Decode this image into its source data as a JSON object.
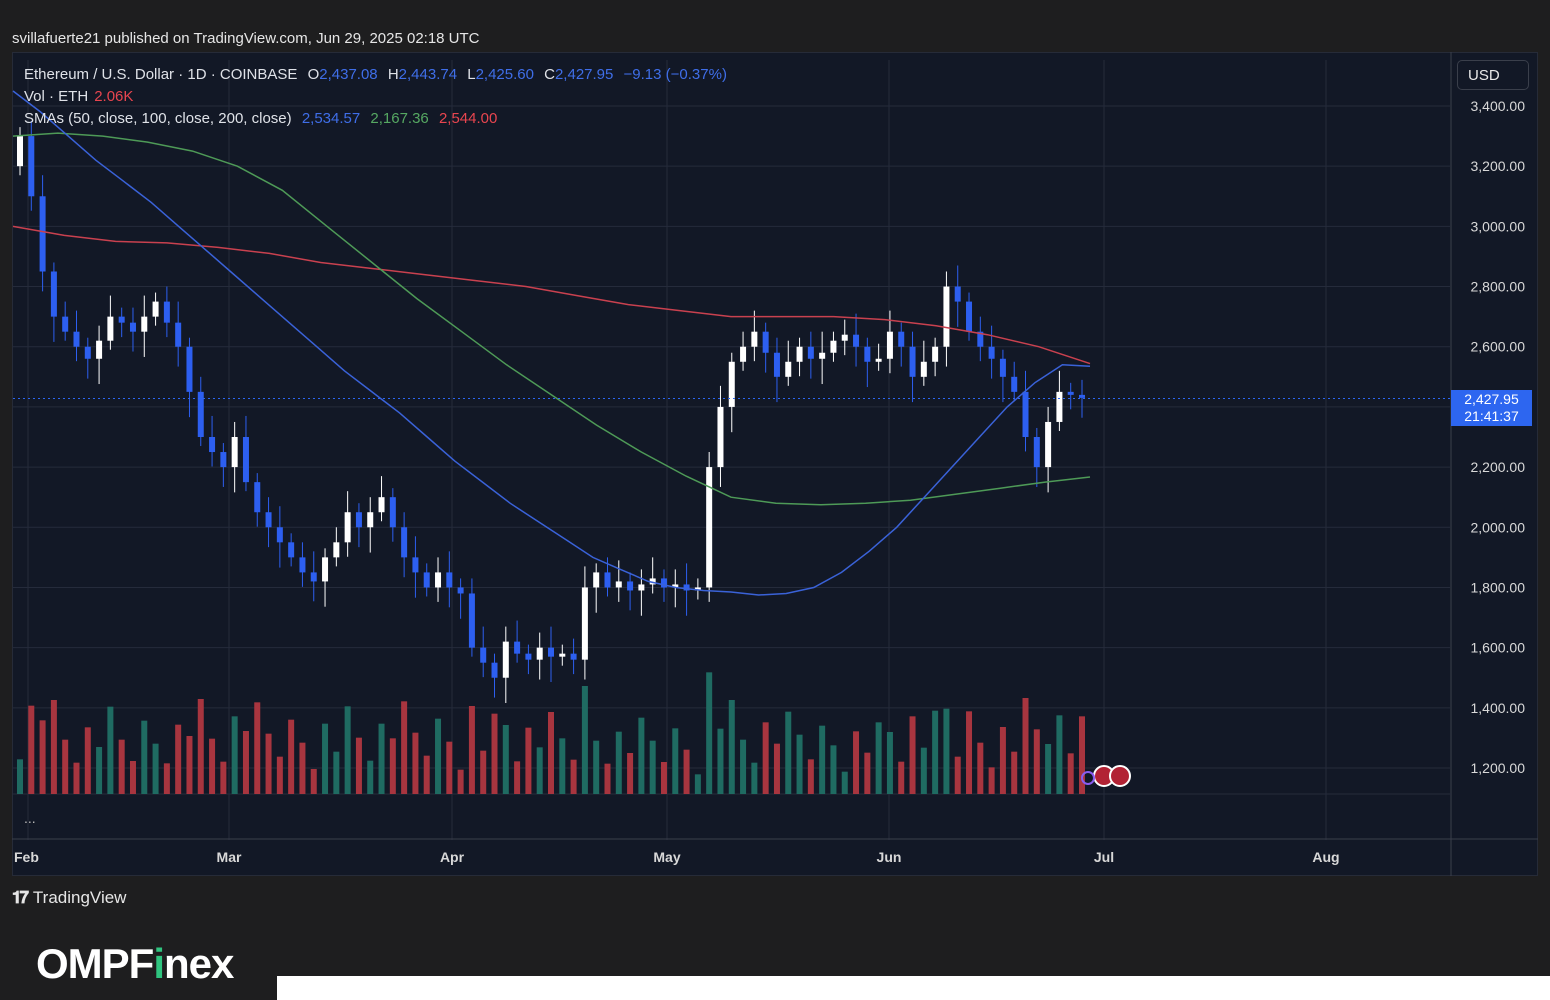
{
  "header": {
    "published": "svillafuerte21 published on TradingView.com, Jun 29, 2025 02:18 UTC"
  },
  "legend": {
    "symbol": "Ethereum / U.S. Dollar · 1D · COINBASE",
    "o_label": "O",
    "o_value": "2,437.08",
    "h_label": "H",
    "h_value": "2,443.74",
    "l_label": "L",
    "l_value": "2,425.60",
    "c_label": "C",
    "c_value": "2,427.95",
    "change": "−9.13 (−0.37%)",
    "vol_label": "Vol · ETH",
    "vol_value": "2.06K",
    "sma_label": "SMAs (50, close, 100, close, 200, close)",
    "sma50": "2,534.57",
    "sma100": "2,167.36",
    "sma200": "2,544.00"
  },
  "currency_button": "USD",
  "price_tag": {
    "price": "2,427.95",
    "countdown": "21:41:37"
  },
  "more_dots": "...",
  "footer": {
    "tradingview": "TradingView",
    "brand_main": "OMPF",
    "brand_accent": "i",
    "brand_tail": "nex"
  },
  "colors": {
    "up": "#ffffff",
    "down": "#2d5ff0",
    "vol_up": "#1f6b62",
    "vol_down": "#a8353f",
    "sma50": "#3a62d8",
    "sma100": "#4e9a57",
    "sma200": "#c9414f",
    "background": "#121826"
  },
  "chart_data": {
    "type": "candlestick",
    "y_axis": {
      "min": 1200,
      "max": 3400,
      "ticks": [
        "3,400.00",
        "3,200.00",
        "3,000.00",
        "2,800.00",
        "2,600.00",
        "2,400.00",
        "2,200.00",
        "2,000.00",
        "1,800.00",
        "1,600.00",
        "1,400.00",
        "1,200.00"
      ]
    },
    "x_axis": {
      "labels": [
        "Feb",
        "Mar",
        "Apr",
        "May",
        "Jun",
        "Jul",
        "Aug"
      ]
    },
    "current_price": 2427.95,
    "close_series_approx": [
      3300,
      3100,
      2850,
      2700,
      2650,
      2600,
      2560,
      2620,
      2700,
      2680,
      2650,
      2700,
      2750,
      2680,
      2600,
      2450,
      2300,
      2250,
      2200,
      2300,
      2150,
      2050,
      2000,
      1950,
      1900,
      1850,
      1820,
      1900,
      1950,
      2050,
      2000,
      2050,
      2100,
      2000,
      1900,
      1850,
      1800,
      1850,
      1800,
      1780,
      1600,
      1550,
      1500,
      1620,
      1580,
      1560,
      1600,
      1570,
      1580,
      1560,
      1800,
      1850,
      1800,
      1820,
      1790,
      1810,
      1830,
      1800,
      1810,
      1790,
      1800,
      2200,
      2400,
      2550,
      2600,
      2650,
      2580,
      2500,
      2550,
      2600,
      2560,
      2580,
      2620,
      2640,
      2600,
      2550,
      2560,
      2650,
      2600,
      2500,
      2550,
      2600,
      2800,
      2750,
      2650,
      2600,
      2560,
      2500,
      2450,
      2300,
      2200,
      2350,
      2450,
      2440,
      2430
    ],
    "sma50_series_approx": [
      3450,
      3380,
      3300,
      3220,
      3150,
      3080,
      3000,
      2920,
      2840,
      2760,
      2680,
      2600,
      2520,
      2450,
      2380,
      2300,
      2220,
      2150,
      2080,
      2020,
      1960,
      1900,
      1860,
      1820,
      1800,
      1790,
      1785,
      1775,
      1780,
      1800,
      1850,
      1920,
      2000,
      2100,
      2200,
      2300,
      2400,
      2480,
      2540,
      2535
    ],
    "sma100_series_approx": [
      3300,
      3310,
      3300,
      3280,
      3250,
      3200,
      3120,
      3000,
      2880,
      2760,
      2650,
      2540,
      2440,
      2340,
      2250,
      2170,
      2100,
      2080,
      2075,
      2080,
      2090,
      2110,
      2130,
      2150,
      2167
    ],
    "sma200_series_approx": [
      3000,
      2970,
      2950,
      2945,
      2930,
      2910,
      2880,
      2860,
      2840,
      2820,
      2800,
      2770,
      2740,
      2720,
      2700,
      2700,
      2700,
      2690,
      2670,
      2640,
      2600,
      2544
    ]
  }
}
